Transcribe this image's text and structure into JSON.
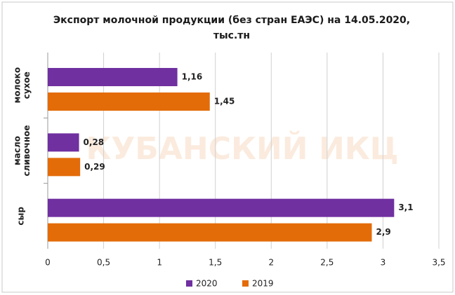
{
  "chart_data": {
    "type": "hbar",
    "title": "Экспорт молочной продукции (без стран ЕАЭС) на 14.05.2020, тыс.тн",
    "watermark": "КУБАНСКИЙ ИКЦ",
    "categories": [
      "молоко сухое",
      "масло сливочное",
      "сыр"
    ],
    "series": [
      {
        "name": "2020",
        "color": "#7030a0",
        "values": [
          1.16,
          0.28,
          3.1
        ],
        "value_labels": [
          "1,16",
          "0,28",
          "3,1"
        ]
      },
      {
        "name": "2019",
        "color": "#e36c09",
        "values": [
          1.45,
          0.29,
          2.9
        ],
        "value_labels": [
          "1,45",
          "0,29",
          "2,9"
        ]
      }
    ],
    "xlim": [
      0,
      3.5
    ],
    "xticks": [
      0,
      {
        "value": 0.5,
        "label": "0,5"
      },
      1,
      {
        "value": 1.5,
        "label": "1,5"
      },
      2,
      {
        "value": 2.5,
        "label": "2,5"
      },
      3,
      {
        "value": 3.5,
        "label": "3,5"
      }
    ],
    "grid": true,
    "legend": "bottom"
  }
}
